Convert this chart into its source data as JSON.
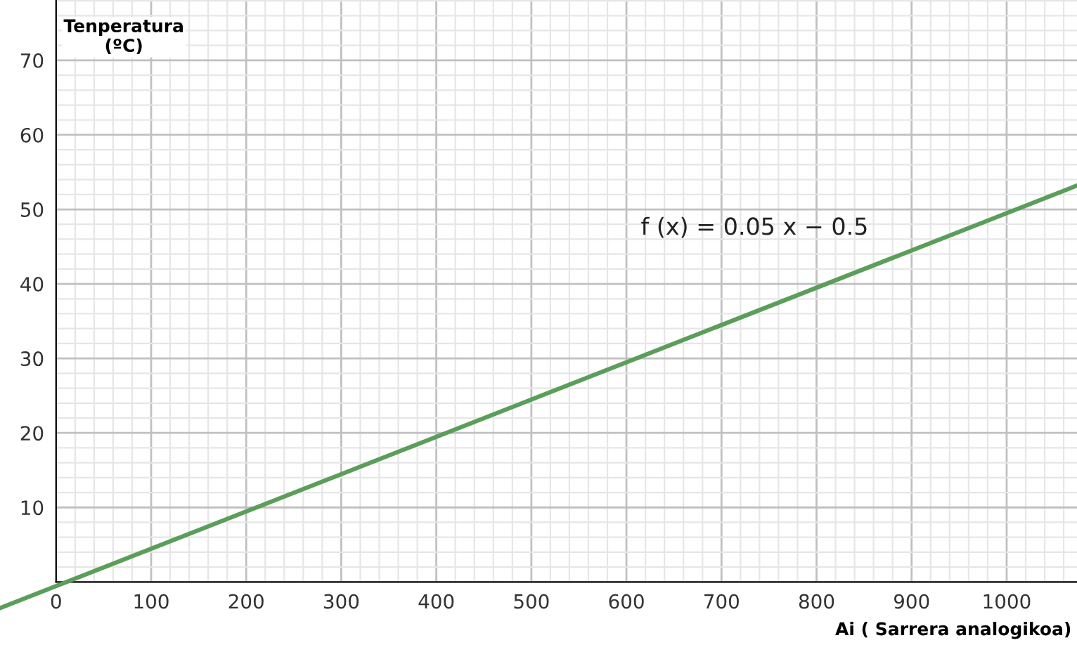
{
  "chart_data": {
    "type": "line",
    "xlabel": "Ai ( Sarrera analogikoa)",
    "ylabel": "Tenperatura\n(ºC)",
    "x": [
      -59,
      1074
    ],
    "series": [
      {
        "color": "#5a9e5a",
        "values": [
          -3.5,
          53.2
        ]
      }
    ],
    "xlim": [
      -59,
      1074
    ],
    "ylim": [
      -9.4,
      78.1
    ],
    "xticks": [
      0,
      100,
      200,
      300,
      400,
      500,
      600,
      700,
      800,
      900,
      1000
    ],
    "yticks": [
      10,
      20,
      30,
      40,
      50,
      60,
      70
    ],
    "grid": true,
    "marker": "none",
    "line_style": "solid",
    "annotations": [
      "f (x) = 0.05 x − 0.5"
    ]
  }
}
